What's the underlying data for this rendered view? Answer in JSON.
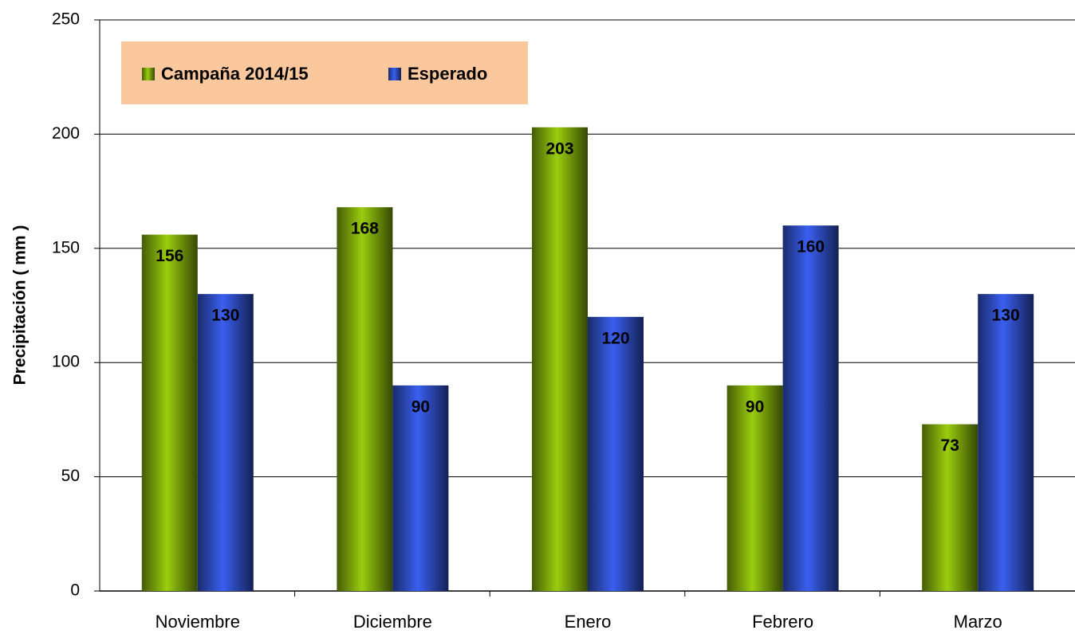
{
  "chart_data": {
    "type": "bar",
    "y_label": "Precipitación ( mm )",
    "categories": [
      "Noviembre",
      "Diciembre",
      "Enero",
      "Febrero",
      "Marzo"
    ],
    "series": [
      {
        "name": "Campaña 2014/15",
        "color": "#9acd0e",
        "values": [
          156,
          168,
          203,
          90,
          73
        ]
      },
      {
        "name": "Esperado",
        "color": "#3a5ff0",
        "values": [
          130,
          90,
          120,
          160,
          130
        ]
      }
    ],
    "ylim": [
      0,
      250
    ],
    "yticks": [
      0,
      50,
      100,
      150,
      200,
      250
    ],
    "grid": true,
    "legend": "top-left"
  }
}
